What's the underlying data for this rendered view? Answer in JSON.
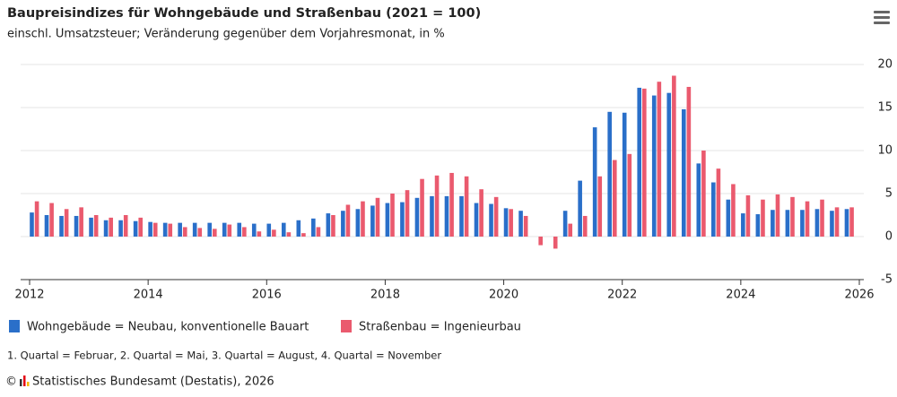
{
  "chart_data": {
    "type": "bar",
    "title": "Baupreisindizes für Wohngebäude und Straßenbau (2021 = 100)",
    "subtitle": "einschl. Umsatzsteuer; Veränderung gegenüber dem Vorjahresmonat, in %",
    "x": [
      2012.08,
      2012.33,
      2012.58,
      2012.83,
      2013.08,
      2013.33,
      2013.58,
      2013.83,
      2014.08,
      2014.33,
      2014.58,
      2014.83,
      2015.08,
      2015.33,
      2015.58,
      2015.83,
      2016.08,
      2016.33,
      2016.58,
      2016.83,
      2017.08,
      2017.33,
      2017.58,
      2017.83,
      2018.08,
      2018.33,
      2018.58,
      2018.83,
      2019.08,
      2019.33,
      2019.58,
      2019.83,
      2020.08,
      2020.33,
      2020.58,
      2020.83,
      2021.08,
      2021.33,
      2021.58,
      2021.83,
      2022.08,
      2022.33,
      2022.58,
      2022.83,
      2023.08,
      2023.33,
      2023.58,
      2023.83,
      2024.08,
      2024.33,
      2024.58,
      2024.83,
      2025.08,
      2025.33,
      2025.58,
      2025.83
    ],
    "series": [
      {
        "name": "Wohngebäude = Neubau, konventionelle Bauart",
        "color": "#2a6fc9",
        "values": [
          2.8,
          2.5,
          2.4,
          2.4,
          2.2,
          1.9,
          1.9,
          1.8,
          1.7,
          1.6,
          1.6,
          1.6,
          1.6,
          1.6,
          1.6,
          1.5,
          1.5,
          1.6,
          1.9,
          2.1,
          2.7,
          3.0,
          3.2,
          3.6,
          3.9,
          4.0,
          4.5,
          4.7,
          4.7,
          4.7,
          3.9,
          3.8,
          3.3,
          3.0,
          0,
          0,
          3.0,
          6.5,
          12.7,
          14.5,
          14.4,
          17.3,
          16.4,
          16.7,
          14.8,
          8.5,
          6.3,
          4.3,
          2.7,
          2.6,
          3.1,
          3.1,
          3.1,
          3.2,
          3.0,
          3.2
        ]
      },
      {
        "name": "Straßenbau = Ingenieurbau",
        "color": "#ea5a6e",
        "values": [
          4.1,
          3.9,
          3.2,
          3.4,
          2.5,
          2.2,
          2.5,
          2.2,
          1.6,
          1.5,
          1.1,
          1.0,
          0.9,
          1.4,
          1.1,
          0.6,
          0.8,
          0.5,
          0.4,
          1.1,
          2.5,
          3.7,
          4.1,
          4.5,
          5.0,
          5.4,
          6.7,
          7.1,
          7.4,
          7.0,
          5.5,
          4.6,
          3.2,
          2.4,
          -1.0,
          -1.4,
          1.5,
          2.4,
          7.0,
          8.9,
          9.6,
          17.2,
          18.0,
          18.7,
          17.4,
          10.0,
          7.9,
          6.1,
          4.8,
          4.3,
          4.9,
          4.6,
          4.1,
          4.3,
          3.4,
          3.4
        ]
      }
    ],
    "xlim": [
      2012,
      2026
    ],
    "xticks": [
      2012,
      2014,
      2016,
      2018,
      2020,
      2022,
      2024,
      2026
    ],
    "ylim": [
      -5,
      20
    ],
    "yticks": [
      -5,
      0,
      5,
      10,
      15,
      20
    ],
    "grid": true,
    "note": "1. Quartal = Februar, 2. Quartal = Mai, 3. Quartal = August, 4. Quartal = November",
    "copyright": "©",
    "source": "Statistisches Bundesamt (Destatis), 2026"
  }
}
